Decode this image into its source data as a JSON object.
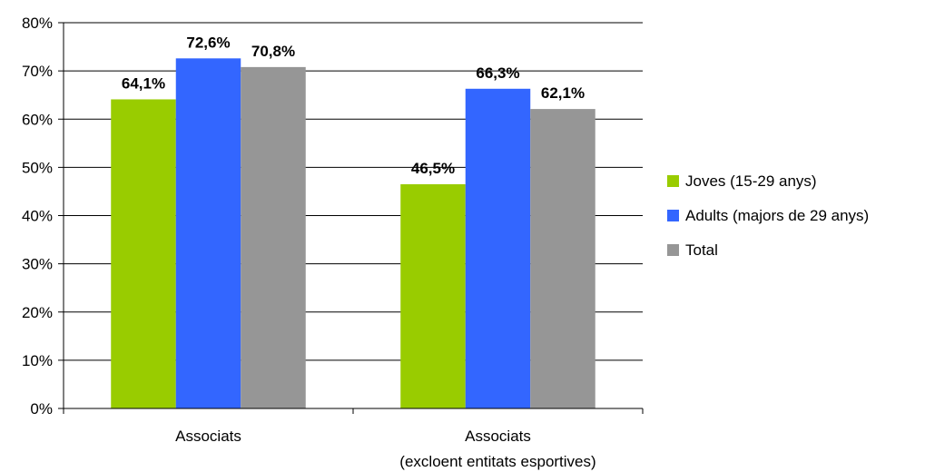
{
  "chart_data": {
    "type": "bar",
    "categories": [
      "Associats",
      "Associats\n(excloent entitats esportives)"
    ],
    "category_lines": [
      [
        "Associats"
      ],
      [
        "Associats",
        "(excloent entitats esportives)"
      ]
    ],
    "series": [
      {
        "name": "Joves (15-29 anys)",
        "color": "#99cc00",
        "values": [
          64.1,
          46.5
        ],
        "labels": [
          "64,1%",
          "46,5%"
        ]
      },
      {
        "name": "Adults (majors de 29 anys)",
        "color": "#3366ff",
        "values": [
          72.6,
          66.3
        ],
        "labels": [
          "72,6%",
          "66,3%"
        ]
      },
      {
        "name": "Total",
        "color": "#969696",
        "values": [
          70.8,
          62.1
        ],
        "labels": [
          "70,8%",
          "62,1%"
        ]
      }
    ],
    "ylim": [
      0,
      80
    ],
    "yticks": [
      0,
      10,
      20,
      30,
      40,
      50,
      60,
      70,
      80
    ],
    "ytick_labels": [
      "0%",
      "10%",
      "20%",
      "30%",
      "40%",
      "50%",
      "60%",
      "70%",
      "80%"
    ],
    "grid": true,
    "legend_position": "right",
    "title": "",
    "xlabel": "",
    "ylabel": ""
  }
}
